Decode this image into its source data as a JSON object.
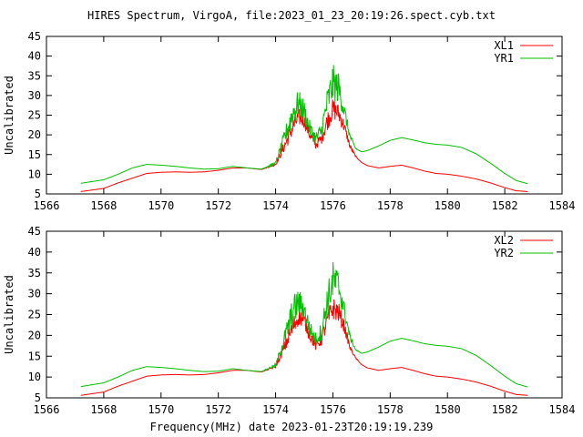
{
  "title": "HIRES Spectrum, VirgoA, file:2023_01_23_20:19:26.spect.cyb.txt",
  "xlabel": "Frequency(MHz) date 2023-01-23T20:19:19.239",
  "colors": {
    "red": "#ff0000",
    "green": "#00c000"
  },
  "chart_data": [
    {
      "type": "line",
      "ylabel": "Uncalibrated",
      "xlim": [
        1566,
        1584
      ],
      "ylim": [
        5,
        45
      ],
      "xticks": [
        1566,
        1568,
        1570,
        1572,
        1574,
        1576,
        1578,
        1580,
        1582,
        1584
      ],
      "yticks": [
        5,
        10,
        15,
        20,
        25,
        30,
        35,
        40,
        45
      ],
      "legend_position": "top-right",
      "grid": false,
      "series": [
        {
          "name": "XL1",
          "color": "#ff0000",
          "x": [
            1567.2,
            1568,
            1568.5,
            1569,
            1569.5,
            1570,
            1570.5,
            1571,
            1571.5,
            1572,
            1572.5,
            1573,
            1573.5,
            1574,
            1574.3,
            1574.6,
            1574.8,
            1575.0,
            1575.2,
            1575.4,
            1575.6,
            1575.8,
            1576.0,
            1576.2,
            1576.4,
            1576.6,
            1576.8,
            1577.0,
            1577.2,
            1577.6,
            1578.0,
            1578.4,
            1578.8,
            1579.2,
            1579.6,
            1580.0,
            1580.5,
            1581.0,
            1581.5,
            1582.0,
            1582.4,
            1582.8
          ],
          "y": [
            5.6,
            6.4,
            7.8,
            9.0,
            10.2,
            10.5,
            10.6,
            10.5,
            10.6,
            11.0,
            11.6,
            11.6,
            11.2,
            12.5,
            17.0,
            22.0,
            24.5,
            23.5,
            20.0,
            17.5,
            19.0,
            23.5,
            26.5,
            25.5,
            22.0,
            17.0,
            14.5,
            13.0,
            12.2,
            11.6,
            12.0,
            12.3,
            11.6,
            10.8,
            10.2,
            10.0,
            9.5,
            8.8,
            7.8,
            6.6,
            5.8,
            5.6
          ],
          "noise": [
            0,
            0,
            0,
            0,
            0,
            0,
            0,
            0,
            0,
            0,
            0,
            0,
            0,
            0.3,
            1.5,
            2.5,
            2.2,
            1.8,
            1.5,
            1.2,
            1.5,
            2.5,
            2.8,
            2.5,
            1.5,
            0.6,
            0.2,
            0,
            0,
            0,
            0,
            0,
            0,
            0,
            0,
            0,
            0,
            0,
            0,
            0,
            0,
            0
          ]
        },
        {
          "name": "YR1",
          "color": "#00c000",
          "x": [
            1567.2,
            1568,
            1568.5,
            1569,
            1569.5,
            1570,
            1570.5,
            1571,
            1571.5,
            1572,
            1572.5,
            1573,
            1573.5,
            1574,
            1574.3,
            1574.6,
            1574.8,
            1575.0,
            1575.2,
            1575.4,
            1575.6,
            1575.8,
            1576.0,
            1576.2,
            1576.4,
            1576.6,
            1576.8,
            1577.0,
            1577.2,
            1577.6,
            1578.0,
            1578.4,
            1578.8,
            1579.2,
            1579.6,
            1580.0,
            1580.5,
            1581.0,
            1581.5,
            1582.0,
            1582.4,
            1582.8
          ],
          "y": [
            7.7,
            8.6,
            10.0,
            11.6,
            12.5,
            12.3,
            12.0,
            11.6,
            11.3,
            11.4,
            12.0,
            11.6,
            11.3,
            12.8,
            19.0,
            25.5,
            28.0,
            26.0,
            21.5,
            19.0,
            21.0,
            28.0,
            33.0,
            32.0,
            26.0,
            19.5,
            16.5,
            15.7,
            16.0,
            17.2,
            18.6,
            19.3,
            18.7,
            18.0,
            17.6,
            17.4,
            16.8,
            15.2,
            12.8,
            10.2,
            8.4,
            7.6
          ],
          "noise": [
            0,
            0,
            0,
            0,
            0,
            0,
            0,
            0,
            0,
            0,
            0,
            0,
            0,
            0.4,
            2.0,
            4.0,
            3.5,
            2.8,
            2.0,
            1.8,
            2.2,
            4.0,
            5.0,
            4.0,
            2.2,
            0.8,
            0.2,
            0,
            0,
            0,
            0,
            0,
            0,
            0,
            0,
            0,
            0,
            0,
            0,
            0,
            0,
            0
          ]
        }
      ]
    },
    {
      "type": "line",
      "ylabel": "Uncalibrated",
      "xlim": [
        1566,
        1584
      ],
      "ylim": [
        5,
        45
      ],
      "xticks": [
        1566,
        1568,
        1570,
        1572,
        1574,
        1576,
        1578,
        1580,
        1582,
        1584
      ],
      "yticks": [
        5,
        10,
        15,
        20,
        25,
        30,
        35,
        40,
        45
      ],
      "legend_position": "top-right",
      "grid": false,
      "series": [
        {
          "name": "XL2",
          "color": "#ff0000",
          "x": [
            1567.2,
            1568,
            1568.5,
            1569,
            1569.5,
            1570,
            1570.5,
            1571,
            1571.5,
            1572,
            1572.5,
            1573,
            1573.5,
            1574,
            1574.3,
            1574.6,
            1574.8,
            1575.0,
            1575.2,
            1575.4,
            1575.6,
            1575.8,
            1576.0,
            1576.2,
            1576.4,
            1576.6,
            1576.8,
            1577.0,
            1577.2,
            1577.6,
            1578.0,
            1578.4,
            1578.8,
            1579.2,
            1579.6,
            1580.0,
            1580.5,
            1581.0,
            1581.5,
            1582.0,
            1582.4,
            1582.8
          ],
          "y": [
            5.6,
            6.4,
            7.8,
            9.0,
            10.2,
            10.5,
            10.6,
            10.5,
            10.6,
            11.0,
            11.6,
            11.6,
            11.2,
            12.5,
            17.0,
            22.0,
            24.5,
            23.5,
            20.0,
            17.5,
            19.0,
            23.5,
            26.5,
            25.5,
            22.0,
            17.0,
            14.5,
            13.0,
            12.2,
            11.6,
            12.0,
            12.3,
            11.6,
            10.8,
            10.2,
            10.0,
            9.5,
            8.8,
            7.8,
            6.6,
            5.8,
            5.6
          ],
          "noise": [
            0,
            0,
            0,
            0,
            0,
            0,
            0,
            0,
            0,
            0,
            0,
            0,
            0,
            0.3,
            1.5,
            2.5,
            2.2,
            1.8,
            1.5,
            1.2,
            1.5,
            2.5,
            2.8,
            2.5,
            1.5,
            0.6,
            0.2,
            0,
            0,
            0,
            0,
            0,
            0,
            0,
            0,
            0,
            0,
            0,
            0,
            0,
            0,
            0
          ]
        },
        {
          "name": "YR2",
          "color": "#00c000",
          "x": [
            1567.2,
            1568,
            1568.5,
            1569,
            1569.5,
            1570,
            1570.5,
            1571,
            1571.5,
            1572,
            1572.5,
            1573,
            1573.5,
            1574,
            1574.3,
            1574.6,
            1574.8,
            1575.0,
            1575.2,
            1575.4,
            1575.6,
            1575.8,
            1576.0,
            1576.2,
            1576.4,
            1576.6,
            1576.8,
            1577.0,
            1577.2,
            1577.6,
            1578.0,
            1578.4,
            1578.8,
            1579.2,
            1579.6,
            1580.0,
            1580.5,
            1581.0,
            1581.5,
            1582.0,
            1582.4,
            1582.8
          ],
          "y": [
            7.7,
            8.6,
            10.0,
            11.6,
            12.5,
            12.3,
            12.0,
            11.6,
            11.3,
            11.4,
            12.0,
            11.6,
            11.3,
            12.8,
            19.0,
            25.5,
            28.0,
            26.0,
            21.5,
            19.0,
            21.0,
            28.0,
            33.0,
            32.0,
            26.0,
            19.5,
            16.5,
            15.7,
            16.0,
            17.2,
            18.6,
            19.3,
            18.7,
            18.0,
            17.6,
            17.4,
            16.8,
            15.2,
            12.8,
            10.2,
            8.4,
            7.6
          ],
          "noise": [
            0,
            0,
            0,
            0,
            0,
            0,
            0,
            0,
            0,
            0,
            0,
            0,
            0,
            0.4,
            2.0,
            4.0,
            3.5,
            2.8,
            2.0,
            1.8,
            2.2,
            4.0,
            5.0,
            4.0,
            2.2,
            0.8,
            0.2,
            0,
            0,
            0,
            0,
            0,
            0,
            0,
            0,
            0,
            0,
            0,
            0,
            0,
            0,
            0
          ]
        }
      ]
    }
  ]
}
